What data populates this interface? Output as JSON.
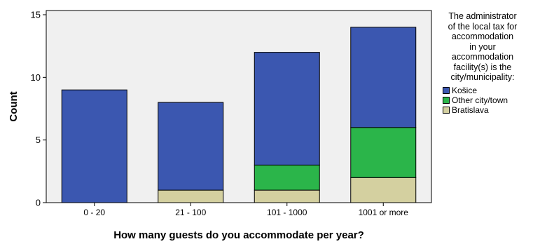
{
  "chart_data": {
    "type": "bar",
    "stacked": true,
    "categories": [
      "0 - 20",
      "21 - 100",
      "101 - 1000",
      "1001 or more"
    ],
    "series": [
      {
        "name": "Bratislava",
        "values": [
          0,
          1,
          1,
          2
        ],
        "color": "#d4d0a0"
      },
      {
        "name": "Other city/town",
        "values": [
          0,
          0,
          2,
          4
        ],
        "color": "#2bb54a"
      },
      {
        "name": "Košice",
        "values": [
          9,
          7,
          9,
          8
        ],
        "color": "#3b57b0"
      }
    ],
    "xlabel": "How many guests do you accommodate per year?",
    "ylabel": "Count",
    "ylim": [
      0,
      15
    ],
    "yticks": [
      0,
      5,
      10,
      15
    ],
    "grid": false,
    "legend_position": "right",
    "legend_order": [
      "Košice",
      "Other city/town",
      "Bratislava"
    ],
    "legend_title_lines": [
      "The administrator",
      "of the local tax for",
      "accommodation",
      "in your",
      "accommodation",
      "facility(s) is the",
      "city/municipality:"
    ],
    "plot_background": "#f0f0f0"
  }
}
